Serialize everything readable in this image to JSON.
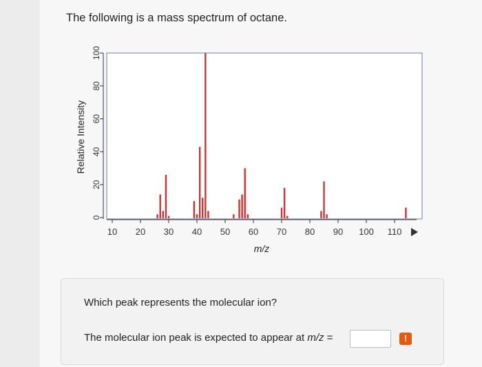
{
  "page": {
    "intro": "The following is a mass spectrum of octane.",
    "question": "Which peak represents the molecular ion?",
    "answer_prefix": "The molecular ion peak is expected to appear at ",
    "answer_var": "m/z",
    "answer_suffix": " =",
    "answer_value": "",
    "warning_symbol": "!"
  },
  "chart_data": {
    "type": "bar",
    "title": "",
    "xlabel": "m/z",
    "ylabel": "Relative Intensity",
    "xlim": [
      8,
      114
    ],
    "ylim": [
      0,
      100
    ],
    "xticks": [
      10,
      20,
      30,
      40,
      50,
      60,
      70,
      80,
      90,
      100,
      110
    ],
    "yticks": [
      0,
      20,
      40,
      60,
      80,
      100
    ],
    "grid": false,
    "bar_color": "#d32f2f",
    "peaks": [
      {
        "x": 26,
        "y": 2
      },
      {
        "x": 27,
        "y": 14
      },
      {
        "x": 28,
        "y": 4
      },
      {
        "x": 29,
        "y": 26
      },
      {
        "x": 30,
        "y": 1
      },
      {
        "x": 39,
        "y": 10
      },
      {
        "x": 40,
        "y": 2
      },
      {
        "x": 41,
        "y": 43
      },
      {
        "x": 42,
        "y": 12
      },
      {
        "x": 43,
        "y": 100
      },
      {
        "x": 44,
        "y": 4
      },
      {
        "x": 53,
        "y": 2
      },
      {
        "x": 55,
        "y": 11
      },
      {
        "x": 56,
        "y": 14
      },
      {
        "x": 57,
        "y": 30
      },
      {
        "x": 58,
        "y": 2
      },
      {
        "x": 70,
        "y": 6
      },
      {
        "x": 71,
        "y": 18
      },
      {
        "x": 72,
        "y": 1
      },
      {
        "x": 84,
        "y": 4
      },
      {
        "x": 85,
        "y": 22
      },
      {
        "x": 86,
        "y": 2
      },
      {
        "x": 114,
        "y": 6
      }
    ]
  }
}
